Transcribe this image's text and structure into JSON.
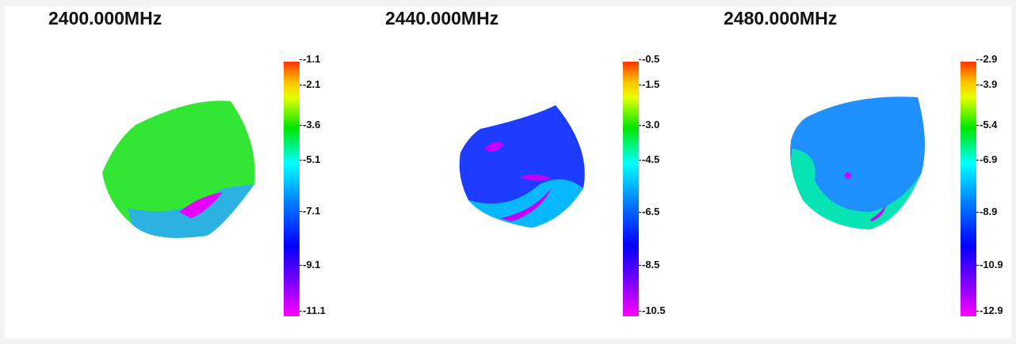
{
  "chart_data": [
    {
      "type": "heatmap",
      "title": "2400.000MHz",
      "colorbar": {
        "ticks": [
          "-1.1",
          "-2.1",
          "-3.6",
          "-5.1",
          "-7.1",
          "-9.1",
          "-11.1"
        ],
        "min": -11.1,
        "max": -1.1
      },
      "colors": {
        "surface": "#33e633",
        "lower": "#2aa8ff",
        "hot": "#e600ff"
      }
    },
    {
      "type": "heatmap",
      "title": "2440.000MHz",
      "colorbar": {
        "ticks": [
          "-0.5",
          "-1.5",
          "-3.0",
          "-4.5",
          "-6.5",
          "-8.5",
          "-10.5"
        ],
        "min": -10.5,
        "max": -0.5
      },
      "colors": {
        "surface": "#1e3cff",
        "lower": "#00d8ff",
        "hot": "#c200ff"
      }
    },
    {
      "type": "heatmap",
      "title": "2480.000MHz",
      "colorbar": {
        "ticks": [
          "-2.9",
          "-3.9",
          "-5.4",
          "-6.9",
          "-8.9",
          "-10.9",
          "-12.9"
        ],
        "min": -12.9,
        "max": -2.9
      },
      "colors": {
        "surface": "#1e90ff",
        "lower": "#00ff99",
        "hot": "#cc00ff"
      }
    }
  ]
}
